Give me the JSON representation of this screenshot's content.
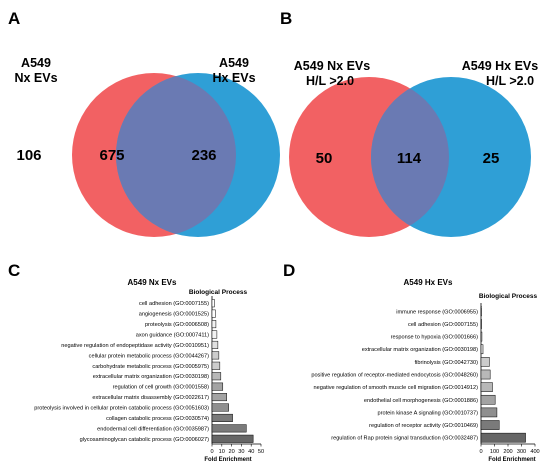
{
  "panels": {
    "A": {
      "letter": "A",
      "left_label": [
        "A549",
        "Nx EVs"
      ],
      "right_label": [
        "A549",
        "Hx EVs"
      ],
      "left_only": "106",
      "overlap": "675",
      "right_only": "236"
    },
    "B": {
      "letter": "B",
      "left_label": [
        "A549 Nx EVs",
        "H/L >2.0"
      ],
      "right_label": [
        "A549 Hx EVs",
        "H/L >2.0"
      ],
      "left_only": "50",
      "overlap": "114",
      "right_only": "25"
    },
    "C": {
      "letter": "C"
    },
    "D": {
      "letter": "D"
    }
  },
  "colors": {
    "venn_left": "#f26163",
    "venn_right": "#2f9fd6",
    "venn_overlap": "#6a7ab3",
    "bar_fills": [
      "#ffffff",
      "#f2f2f2",
      "#e0e0e0",
      "#cccccc",
      "#b8b8b8",
      "#a3a3a3",
      "#8f8f8f",
      "#7a7a7a",
      "#666666"
    ]
  },
  "chart_data": [
    {
      "type": "bar",
      "orientation": "horizontal",
      "title": "A549 Nx EVs",
      "legend_title": "Biological Process",
      "xlabel": "Fold Enrichment",
      "xlim": [
        0,
        50
      ],
      "xticks": [
        0,
        10,
        20,
        30,
        40,
        50
      ],
      "categories": [
        "cell adhesion (GO:0007155)",
        "angiogenesis (GO:0001525)",
        "proteolysis (GO:0006508)",
        "axon guidance (GO:0007411)",
        "negative regulation of endopeptidase activity (GO:0010951)",
        "cellular protein metabolic process (GO:0044267)",
        "carbohydrate metabolic process (GO:0005975)",
        "extracellular matrix organization (GO:0030198)",
        "regulation of cell growth (GO:0001558)",
        "extracellular matrix disassembly (GO:0022617)",
        "proteolysis involved in cellular protein catabolic process (GO:0051603)",
        "collagen catabolic process (GO:0030574)",
        "endodermal cell differentiation (GO:0035987)",
        "glycosaminoglycan catabolic process (GO:0006027)"
      ],
      "values": [
        2.5,
        3.5,
        4,
        5,
        6,
        7,
        8,
        9,
        11,
        15,
        17,
        21,
        35,
        42
      ]
    },
    {
      "type": "bar",
      "orientation": "horizontal",
      "title": "A549 Hx EVs",
      "legend_title": "Biological Process",
      "xlabel": "Fold Enrichment",
      "xlim": [
        0,
        400
      ],
      "xticks": [
        0,
        100,
        200,
        300,
        400
      ],
      "categories": [
        "immune response (GO:0006955)",
        "cell adhesion (GO:0007155)",
        "response to hypoxia (GO:0001666)",
        "extracellular matrix organization (GO:0030198)",
        "fibrinolysis (GO:0042730)",
        "positive regulation of receptor-mediated endocytosis (GO:0048260)",
        "negative regulation of smooth muscle cell migration (GO:0014912)",
        "endothelial cell morphogenesis (GO:0001886)",
        "protein kinase A signaling (GO:0010737)",
        "regulation of receptor activity (GO:0010469)",
        "regulation of Rap protein signal transduction (GO:0032487)"
      ],
      "values": [
        3,
        5,
        7,
        15,
        62,
        68,
        85,
        105,
        118,
        135,
        330
      ]
    }
  ]
}
